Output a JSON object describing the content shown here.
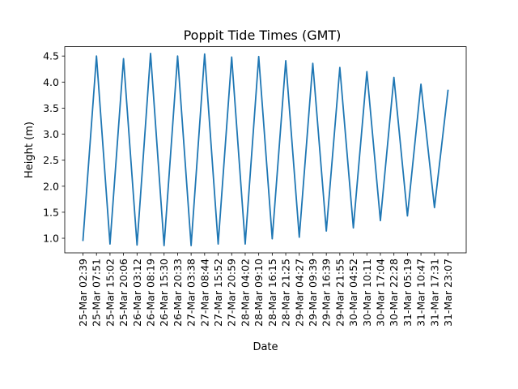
{
  "chart_data": {
    "type": "line",
    "title": "Poppit Tide Times (GMT)",
    "xlabel": "Date",
    "ylabel": "Height (m)",
    "ylim": [
      0.72,
      4.68
    ],
    "yticks": [
      1.0,
      1.5,
      2.0,
      2.5,
      3.0,
      3.5,
      4.0,
      4.5
    ],
    "ytick_labels": [
      "1.0",
      "1.5",
      "2.0",
      "2.5",
      "3.0",
      "3.5",
      "4.0",
      "4.5"
    ],
    "grid": false,
    "categories": [
      "25-Mar 02:39",
      "25-Mar 07:51",
      "25-Mar 15:02",
      "25-Mar 20:06",
      "26-Mar 03:12",
      "26-Mar 08:19",
      "26-Mar 15:30",
      "26-Mar 20:33",
      "27-Mar 03:38",
      "27-Mar 08:44",
      "27-Mar 15:52",
      "27-Mar 20:59",
      "28-Mar 04:02",
      "28-Mar 09:10",
      "28-Mar 16:15",
      "28-Mar 21:25",
      "29-Mar 04:27",
      "29-Mar 09:39",
      "29-Mar 16:39",
      "29-Mar 21:55",
      "30-Mar 04:52",
      "30-Mar 10:11",
      "30-Mar 17:04",
      "30-Mar 22:28",
      "31-Mar 05:19",
      "31-Mar 10:47",
      "31-Mar 17:31",
      "31-Mar 23:07"
    ],
    "series": [
      {
        "color": "#1f77b4",
        "values": [
          0.96,
          4.5,
          0.89,
          4.45,
          0.87,
          4.55,
          0.86,
          4.5,
          0.86,
          4.54,
          0.89,
          4.48,
          0.89,
          4.49,
          0.99,
          4.41,
          1.02,
          4.36,
          1.14,
          4.28,
          1.2,
          4.2,
          1.34,
          4.09,
          1.43,
          3.96,
          1.59,
          3.84
        ]
      }
    ]
  }
}
